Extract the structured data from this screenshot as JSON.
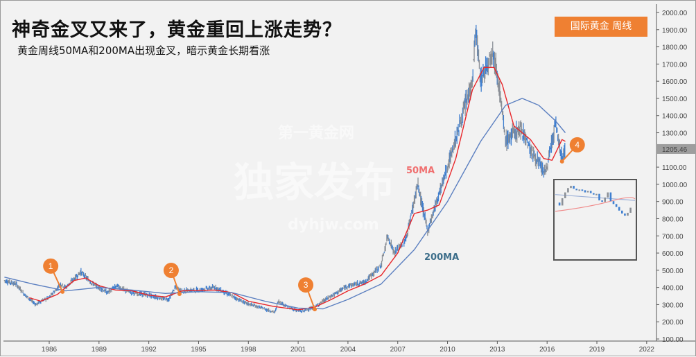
{
  "title": "神奇金叉又来了，黄金重回上涨走势？",
  "subtitle": "黄金周线50MA和200MA出现金叉，暗示黄金长期看涨",
  "badge": "国际黄金  周线",
  "watermark": {
    "top": "第一黄金网",
    "main": "独家发布",
    "url": "dyhjw.com"
  },
  "colors": {
    "price_up": "#8a8f96",
    "price_down": "#3f7fd0",
    "ma50": "#e8262a",
    "ma200": "#5b7fc0",
    "marker": "#ef8032",
    "ma50_label": "#f07070",
    "ma200_label": "#3d6e8a"
  },
  "chart_data": {
    "type": "line",
    "title": "神奇金叉又来了，黄金重回上涨走势？",
    "xlabel": "",
    "ylabel": "",
    "xlim": [
      1983.25,
      2022.6
    ],
    "ylim": [
      100,
      2000
    ],
    "x_ticks": [
      "1986",
      "1989",
      "1992",
      "1995",
      "1998",
      "2001",
      "2004",
      "2007",
      "2010",
      "2013",
      "2016",
      "2019",
      "2022"
    ],
    "y_ticks": [
      "2000.00",
      "1900.00",
      "1800.00",
      "1700.00",
      "1600.00",
      "1500.00",
      "1400.00",
      "1300.00",
      "1100.00",
      "1000.00",
      "900.00",
      "800.00",
      "700.00",
      "600.00",
      "500.00",
      "400.00",
      "300.00",
      "200.00",
      "100.00"
    ],
    "last_price": "1205.46",
    "grid": false,
    "price": [
      [
        1983.3,
        440
      ],
      [
        1984.0,
        420
      ],
      [
        1984.5,
        360
      ],
      [
        1985.2,
        300
      ],
      [
        1985.5,
        320
      ],
      [
        1986.0,
        340
      ],
      [
        1986.7,
        420
      ],
      [
        1987.0,
        400
      ],
      [
        1987.9,
        490
      ],
      [
        1988.5,
        430
      ],
      [
        1989.0,
        400
      ],
      [
        1989.5,
        370
      ],
      [
        1990.1,
        410
      ],
      [
        1990.6,
        380
      ],
      [
        1991.0,
        370
      ],
      [
        1992.0,
        355
      ],
      [
        1992.8,
        335
      ],
      [
        1993.2,
        330
      ],
      [
        1993.6,
        400
      ],
      [
        1994.0,
        380
      ],
      [
        1995.0,
        385
      ],
      [
        1996.0,
        400
      ],
      [
        1997.0,
        350
      ],
      [
        1997.8,
        310
      ],
      [
        1998.5,
        290
      ],
      [
        1999.6,
        255
      ],
      [
        1999.8,
        320
      ],
      [
        2000.5,
        280
      ],
      [
        2001.2,
        260
      ],
      [
        2002.0,
        285
      ],
      [
        2002.5,
        320
      ],
      [
        2003.0,
        350
      ],
      [
        2004.0,
        410
      ],
      [
        2005.0,
        430
      ],
      [
        2006.0,
        530
      ],
      [
        2006.4,
        700
      ],
      [
        2006.8,
        600
      ],
      [
        2007.5,
        680
      ],
      [
        2008.2,
        1000
      ],
      [
        2008.8,
        730
      ],
      [
        2009.5,
        950
      ],
      [
        2010.0,
        1100
      ],
      [
        2010.9,
        1400
      ],
      [
        2011.5,
        1600
      ],
      [
        2011.7,
        1900
      ],
      [
        2012.0,
        1600
      ],
      [
        2012.7,
        1780
      ],
      [
        2013.0,
        1650
      ],
      [
        2013.5,
        1250
      ],
      [
        2014.0,
        1300
      ],
      [
        2014.5,
        1320
      ],
      [
        2015.0,
        1200
      ],
      [
        2015.9,
        1060
      ],
      [
        2016.5,
        1350
      ],
      [
        2016.9,
        1150
      ],
      [
        2017.1,
        1205
      ]
    ],
    "series": [
      {
        "name": "50MA",
        "values": [
          [
            1984.8,
            340
          ],
          [
            1985.5,
            320
          ],
          [
            1986.5,
            360
          ],
          [
            1987.5,
            440
          ],
          [
            1988.2,
            455
          ],
          [
            1989,
            410
          ],
          [
            1990,
            385
          ],
          [
            1991,
            380
          ],
          [
            1992,
            355
          ],
          [
            1993,
            345
          ],
          [
            1994,
            380
          ],
          [
            1996,
            385
          ],
          [
            1997,
            370
          ],
          [
            1998,
            320
          ],
          [
            1999.5,
            290
          ],
          [
            2001,
            270
          ],
          [
            2002,
            285
          ],
          [
            2003,
            330
          ],
          [
            2004,
            380
          ],
          [
            2005,
            420
          ],
          [
            2006,
            470
          ],
          [
            2007,
            600
          ],
          [
            2008,
            830
          ],
          [
            2008.8,
            850
          ],
          [
            2009.5,
            880
          ],
          [
            2010.5,
            1150
          ],
          [
            2011.5,
            1550
          ],
          [
            2012.2,
            1680
          ],
          [
            2012.8,
            1680
          ],
          [
            2013.3,
            1580
          ],
          [
            2014,
            1340
          ],
          [
            2015,
            1260
          ],
          [
            2015.8,
            1150
          ],
          [
            2016.3,
            1140
          ],
          [
            2016.9,
            1260
          ],
          [
            2017.1,
            1250
          ]
        ]
      },
      {
        "name": "200MA",
        "values": [
          [
            1983.3,
            460
          ],
          [
            1985,
            420
          ],
          [
            1987,
            380
          ],
          [
            1989,
            400
          ],
          [
            1991,
            385
          ],
          [
            1993,
            365
          ],
          [
            1995,
            375
          ],
          [
            1997,
            370
          ],
          [
            1999,
            320
          ],
          [
            2001,
            280
          ],
          [
            2002.5,
            275
          ],
          [
            2004,
            330
          ],
          [
            2006,
            420
          ],
          [
            2008,
            620
          ],
          [
            2010,
            900
          ],
          [
            2012,
            1250
          ],
          [
            2013.5,
            1460
          ],
          [
            2014.5,
            1500
          ],
          [
            2015.5,
            1460
          ],
          [
            2016.5,
            1370
          ],
          [
            2017.1,
            1300
          ]
        ]
      }
    ],
    "annotations": [
      {
        "label": "1",
        "x": 1986.8,
        "y": 375
      },
      {
        "label": "2",
        "x": 1993.85,
        "y": 362
      },
      {
        "label": "3",
        "x": 2002.0,
        "y": 273
      },
      {
        "label": "4",
        "x": 2016.9,
        "y": 1133
      }
    ],
    "inset_closes": [
      760,
      720,
      820,
      900,
      960,
      990,
      950,
      930,
      940,
      930,
      900,
      920,
      890,
      870,
      880,
      790,
      770,
      830,
      900,
      780,
      740,
      700,
      650,
      610,
      580,
      620,
      690
    ]
  }
}
